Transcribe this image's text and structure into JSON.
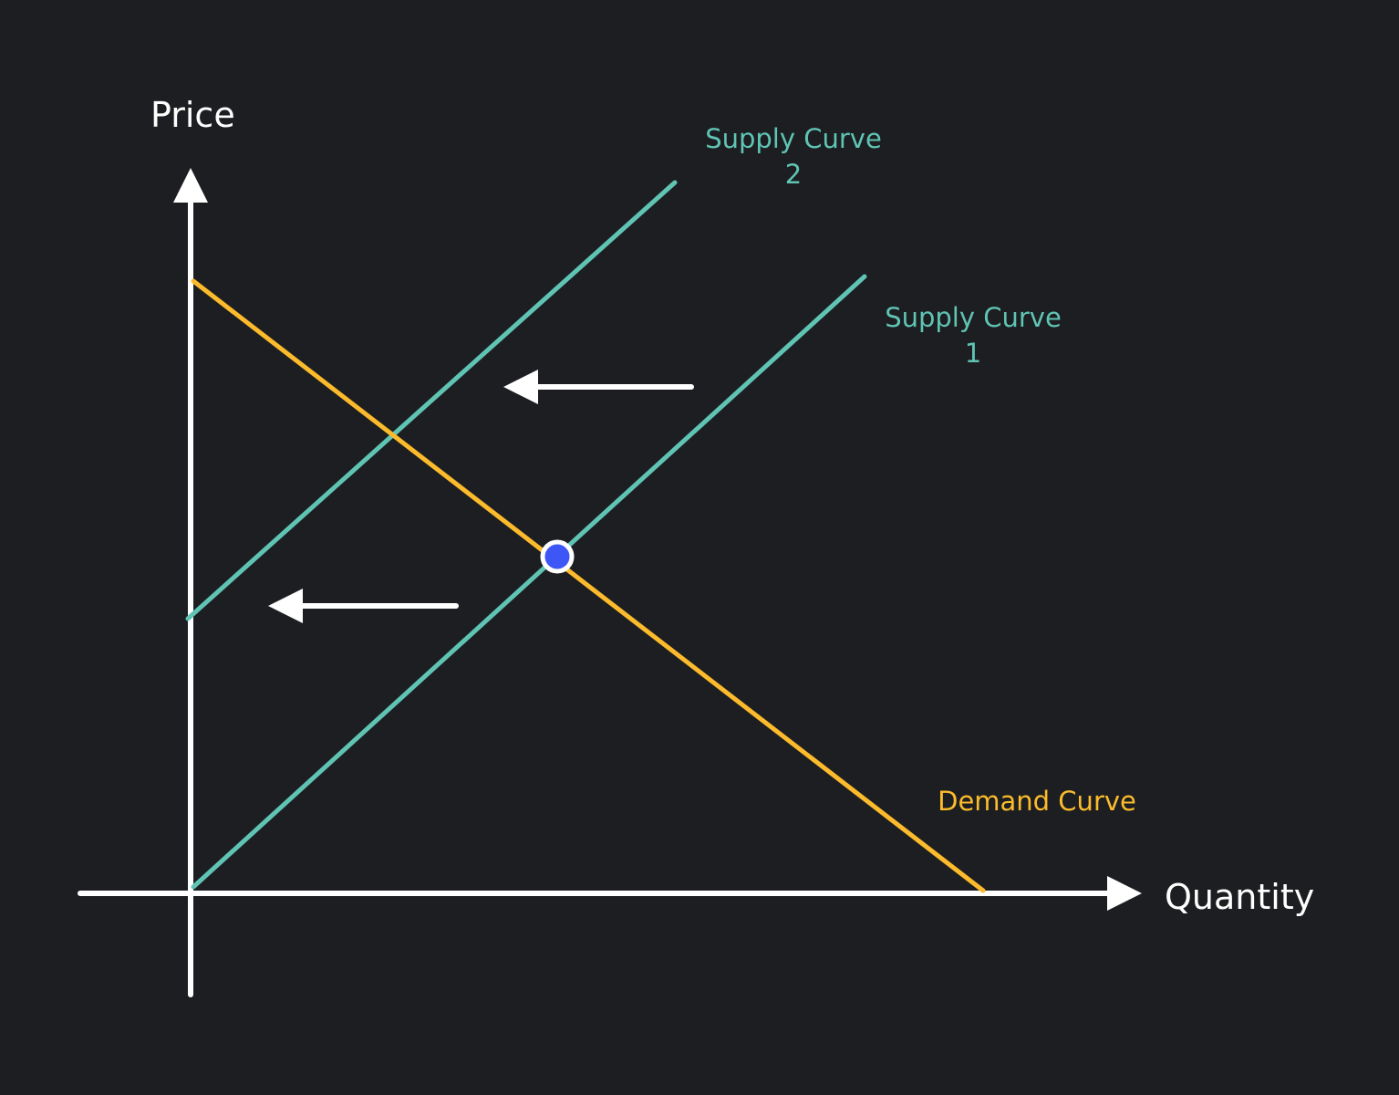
{
  "axes": {
    "y_label": "Price",
    "x_label": "Quantity"
  },
  "curves": {
    "supply_2": {
      "label_line1": "Supply Curve",
      "label_line2": "2"
    },
    "supply_1": {
      "label_line1": "Supply Curve",
      "label_line2": "1"
    },
    "demand": {
      "label": "Demand Curve"
    }
  },
  "colors": {
    "background": "#1d1e21",
    "axis": "#ffffff",
    "supply": "#5fc4b4",
    "demand": "#fbbb2c",
    "equilibrium_point": "#3d56f5"
  }
}
